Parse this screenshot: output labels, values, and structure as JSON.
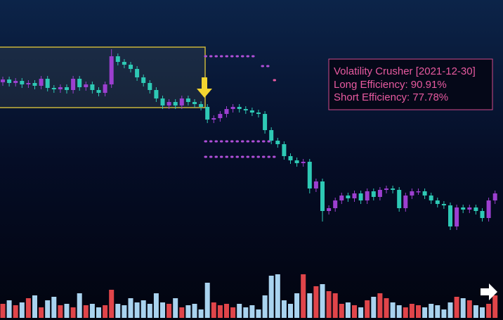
{
  "chart_data": {
    "type": "candlestick",
    "annotation": {
      "title": "Volatility Crusher [2021-12-30]",
      "lines": [
        "Long Efficiency: 90.91%",
        "Short Efficiency: 77.78%"
      ]
    },
    "ylim": [
      0,
      455
    ],
    "y2lim": [
      0,
      100
    ],
    "up_color": "#9c3fd0",
    "down_color": "#2ec9b5",
    "volume_up_color": "#e0454a",
    "volume_down_color": "#a9d3ef",
    "opens": [
      338,
      342,
      337,
      340,
      335,
      337,
      333,
      343,
      330,
      328,
      331,
      327,
      343,
      331,
      335,
      327,
      323,
      335,
      375,
      367,
      363,
      357,
      345,
      337,
      327,
      315,
      305,
      310,
      305,
      315,
      310,
      307,
      303,
      285,
      287,
      293,
      300,
      303,
      300,
      298,
      295,
      293,
      270,
      255,
      250,
      233,
      227,
      223,
      225,
      187,
      197,
      155,
      159,
      170,
      177,
      173,
      180,
      170,
      183,
      175,
      185,
      187,
      185,
      159,
      177,
      183,
      183,
      177,
      170,
      165,
      163,
      133,
      160,
      157,
      160,
      155,
      145,
      170
    ],
    "highs": [
      346,
      346,
      344,
      344,
      341,
      341,
      347,
      347,
      334,
      335,
      335,
      347,
      347,
      339,
      339,
      331,
      339,
      385,
      379,
      371,
      367,
      361,
      349,
      341,
      331,
      319,
      314,
      314,
      319,
      319,
      314,
      311,
      307,
      291,
      297,
      304,
      307,
      307,
      304,
      302,
      299,
      297,
      274,
      259,
      254,
      237,
      231,
      229,
      229,
      201,
      201,
      163,
      174,
      181,
      181,
      184,
      184,
      187,
      187,
      189,
      191,
      191,
      189,
      181,
      187,
      187,
      187,
      181,
      174,
      169,
      167,
      164,
      164,
      164,
      164,
      159,
      174,
      184
    ],
    "lows": [
      333,
      332,
      332,
      330,
      330,
      328,
      328,
      325,
      323,
      323,
      322,
      322,
      326,
      326,
      322,
      318,
      318,
      330,
      362,
      358,
      352,
      340,
      332,
      322,
      310,
      300,
      300,
      300,
      300,
      305,
      302,
      298,
      280,
      280,
      282,
      288,
      295,
      295,
      293,
      290,
      288,
      265,
      250,
      245,
      228,
      222,
      218,
      218,
      180,
      182,
      140,
      150,
      154,
      165,
      168,
      168,
      165,
      165,
      170,
      170,
      180,
      180,
      154,
      154,
      172,
      178,
      172,
      165,
      160,
      158,
      128,
      128,
      152,
      152,
      150,
      140,
      140,
      165
    ],
    "closes": [
      342,
      337,
      340,
      335,
      337,
      333,
      343,
      330,
      328,
      331,
      327,
      343,
      331,
      335,
      327,
      323,
      335,
      375,
      367,
      363,
      357,
      345,
      337,
      327,
      315,
      305,
      310,
      305,
      315,
      310,
      307,
      303,
      285,
      287,
      293,
      300,
      303,
      300,
      298,
      295,
      293,
      270,
      255,
      250,
      233,
      227,
      223,
      225,
      187,
      197,
      155,
      159,
      170,
      177,
      173,
      180,
      170,
      183,
      175,
      185,
      187,
      185,
      159,
      177,
      183,
      183,
      177,
      170,
      165,
      163,
      133,
      160,
      157,
      160,
      155,
      145,
      170,
      180
    ],
    "volumes": [
      20,
      25,
      18,
      22,
      28,
      32,
      15,
      25,
      30,
      18,
      20,
      15,
      35,
      18,
      20,
      15,
      18,
      40,
      20,
      18,
      28,
      22,
      25,
      20,
      35,
      22,
      20,
      28,
      15,
      18,
      20,
      12,
      50,
      22,
      18,
      20,
      15,
      20,
      15,
      18,
      12,
      32,
      60,
      62,
      25,
      20,
      35,
      62,
      35,
      45,
      48,
      38,
      35,
      20,
      22,
      18,
      15,
      25,
      30,
      35,
      28,
      22,
      18,
      15,
      20,
      18,
      15,
      20,
      18,
      12,
      22,
      30,
      28,
      25,
      18,
      15,
      20,
      32
    ]
  }
}
